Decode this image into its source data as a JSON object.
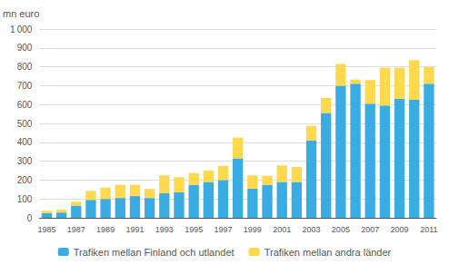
{
  "chart_data": {
    "type": "bar",
    "stacked": true,
    "ylabel": "mn euro",
    "categories": [
      "1985",
      null,
      "1987",
      null,
      "1989",
      null,
      "1991",
      null,
      "1993",
      null,
      "1995",
      null,
      "1997",
      null,
      "1999",
      null,
      "2001",
      null,
      "2003",
      null,
      "2005",
      null,
      "2007",
      null,
      "2009",
      null,
      "2011"
    ],
    "series": [
      {
        "name": "Trafiken mellan Finland och utlandet",
        "color": "#3aace2",
        "values": [
          25,
          28,
          65,
          95,
          100,
          105,
          115,
          105,
          130,
          135,
          175,
          190,
          200,
          315,
          155,
          175,
          190,
          190,
          410,
          555,
          700,
          710,
          605,
          595,
          630,
          625,
          710
        ]
      },
      {
        "name": "Trafiken mellan andra länder",
        "color": "#ffd94d",
        "values": [
          12,
          15,
          20,
          48,
          60,
          70,
          60,
          48,
          95,
          80,
          62,
          60,
          75,
          110,
          70,
          48,
          88,
          80,
          78,
          80,
          115,
          22,
          125,
          200,
          165,
          210,
          88
        ]
      }
    ],
    "ylim": [
      0,
      1000
    ],
    "yticks": [
      0,
      100,
      200,
      300,
      400,
      500,
      600,
      700,
      800,
      900,
      {
        "value": 1000,
        "label": "1 000"
      }
    ],
    "grid": true,
    "legend": "bottom"
  }
}
